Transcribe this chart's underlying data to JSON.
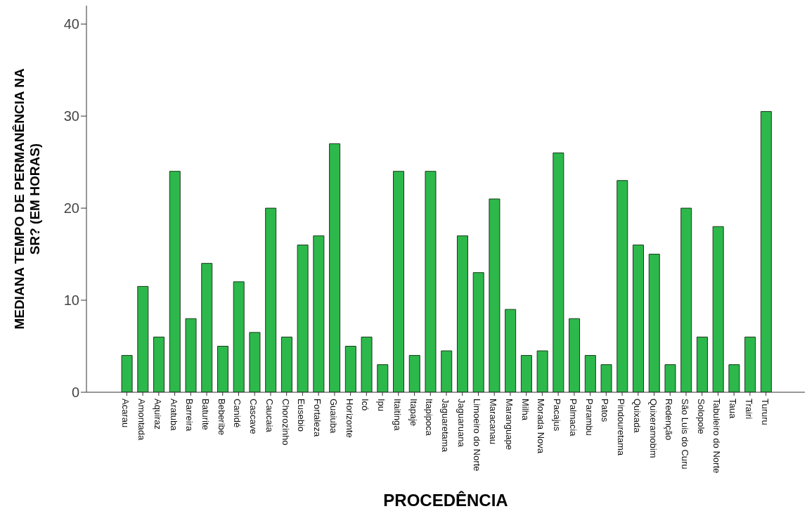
{
  "chart_data": {
    "type": "bar",
    "xlabel": "PROCEDÊNCIA",
    "ylabel": "MEDIANA TEMPO DE PERMANÊNCIA NA\nSR? (EM HORAS)",
    "categories": [
      "Acarau",
      "Amontada",
      "Aquiraz",
      "Aratuba",
      "Barreira",
      "Baturite",
      "Beberibe",
      "Canidé",
      "Cascave",
      "Caucaia",
      "Chorozinho",
      "Eusebio",
      "Fortaleza",
      "Guaiuba",
      "Horizonte",
      "Icó",
      "Ipu",
      "Itaitinga",
      "Itapaje",
      "Itapipoca",
      "Jaguaretama",
      "Jaguaruana",
      "Limoeiro do Norte",
      "Maracanau",
      "Maranguape",
      "Milha",
      "Morada Nova",
      "Pacajus",
      "Palmacia",
      "Parambu",
      "Patos",
      "Pindouretama",
      "Quixada",
      "Quixeramobim",
      "Redenção",
      "São Luis do Curu",
      "Solopole",
      "Tabuleiro do Norte",
      "Taua",
      "Trairi",
      "Tururu"
    ],
    "values": [
      4,
      11.5,
      6,
      24,
      8,
      14,
      5,
      12,
      6.5,
      20,
      6,
      16,
      17,
      27,
      5,
      6,
      3,
      24,
      4,
      24,
      4.5,
      17,
      13,
      21,
      9,
      4,
      4.5,
      26,
      8,
      4,
      3,
      23,
      16,
      15,
      3,
      20,
      6,
      18,
      3,
      6,
      30.5
    ],
    "color": "#2db84b",
    "ylim": [
      0,
      42
    ],
    "yticks": [
      0,
      10,
      20,
      30,
      40
    ],
    "grid": false,
    "legend": false
  }
}
